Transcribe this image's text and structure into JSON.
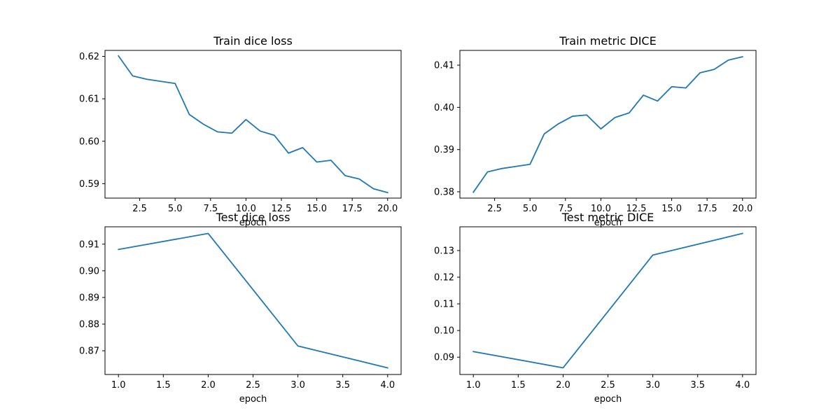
{
  "colors": {
    "series": "#1f77b4",
    "axes": "#000000",
    "background": "#ffffff"
  },
  "chart_data": [
    {
      "type": "line",
      "title": "Train dice loss",
      "xlabel": "epoch",
      "ylabel": "",
      "grid": false,
      "xlim": [
        0.05,
        20.95
      ],
      "ylim": [
        0.5866,
        0.6214
      ],
      "xticks": [
        2.5,
        5.0,
        7.5,
        10.0,
        12.5,
        15.0,
        17.5,
        20.0
      ],
      "xtick_labels": [
        "2.5",
        "5.0",
        "7.5",
        "10.0",
        "12.5",
        "15.0",
        "17.5",
        "20.0"
      ],
      "yticks": [
        0.59,
        0.6,
        0.61,
        0.62
      ],
      "ytick_labels": [
        "0.59",
        "0.60",
        "0.61",
        "0.62"
      ],
      "x": [
        1,
        2,
        3,
        4,
        5,
        6,
        7,
        8,
        9,
        10,
        11,
        12,
        13,
        14,
        15,
        16,
        17,
        18,
        19,
        20
      ],
      "series": [
        {
          "values": [
            0.6201,
            0.6154,
            0.6146,
            0.6141,
            0.6136,
            0.6063,
            0.604,
            0.6022,
            0.6019,
            0.6051,
            0.6024,
            0.6014,
            0.5972,
            0.5985,
            0.5951,
            0.5955,
            0.5919,
            0.5911,
            0.5888,
            0.5879
          ]
        }
      ]
    },
    {
      "type": "line",
      "title": "Train metric DICE",
      "xlabel": "epoch",
      "ylabel": "",
      "grid": false,
      "xlim": [
        0.05,
        20.95
      ],
      "ylim": [
        0.3785,
        0.4135
      ],
      "xticks": [
        2.5,
        5.0,
        7.5,
        10.0,
        12.5,
        15.0,
        17.5,
        20.0
      ],
      "xtick_labels": [
        "2.5",
        "5.0",
        "7.5",
        "10.0",
        "12.5",
        "15.0",
        "17.5",
        "20.0"
      ],
      "yticks": [
        0.38,
        0.39,
        0.4,
        0.41
      ],
      "ytick_labels": [
        "0.38",
        "0.39",
        "0.40",
        "0.41"
      ],
      "x": [
        1,
        2,
        3,
        4,
        5,
        6,
        7,
        8,
        9,
        10,
        11,
        12,
        13,
        14,
        15,
        16,
        17,
        18,
        19,
        20
      ],
      "series": [
        {
          "values": [
            0.3799,
            0.3847,
            0.3855,
            0.386,
            0.3865,
            0.3937,
            0.3961,
            0.3979,
            0.3982,
            0.3949,
            0.3976,
            0.3987,
            0.4029,
            0.4015,
            0.4049,
            0.4046,
            0.4082,
            0.409,
            0.4112,
            0.412
          ]
        }
      ]
    },
    {
      "type": "line",
      "title": "Test dice loss",
      "xlabel": "epoch",
      "ylabel": "",
      "grid": false,
      "xlim": [
        0.85,
        4.15
      ],
      "ylim": [
        0.8611,
        0.9165
      ],
      "xticks": [
        1.0,
        1.5,
        2.0,
        2.5,
        3.0,
        3.5,
        4.0
      ],
      "xtick_labels": [
        "1.0",
        "1.5",
        "2.0",
        "2.5",
        "3.0",
        "3.5",
        "4.0"
      ],
      "yticks": [
        0.87,
        0.88,
        0.89,
        0.9,
        0.91
      ],
      "ytick_labels": [
        "0.87",
        "0.88",
        "0.89",
        "0.90",
        "0.91"
      ],
      "x": [
        1,
        2,
        3,
        4
      ],
      "series": [
        {
          "values": [
            0.908,
            0.914,
            0.8718,
            0.8636
          ]
        }
      ]
    },
    {
      "type": "line",
      "title": "Test metric DICE",
      "xlabel": "epoch",
      "ylabel": "",
      "grid": false,
      "xlim": [
        0.85,
        4.15
      ],
      "ylim": [
        0.0835,
        0.1389
      ],
      "xticks": [
        1.0,
        1.5,
        2.0,
        2.5,
        3.0,
        3.5,
        4.0
      ],
      "xtick_labels": [
        "1.0",
        "1.5",
        "2.0",
        "2.5",
        "3.0",
        "3.5",
        "4.0"
      ],
      "yticks": [
        0.09,
        0.1,
        0.11,
        0.12,
        0.13
      ],
      "ytick_labels": [
        "0.09",
        "0.10",
        "0.11",
        "0.12",
        "0.13"
      ],
      "x": [
        1,
        2,
        3,
        4
      ],
      "series": [
        {
          "values": [
            0.0921,
            0.086,
            0.1283,
            0.1364
          ]
        }
      ]
    }
  ]
}
